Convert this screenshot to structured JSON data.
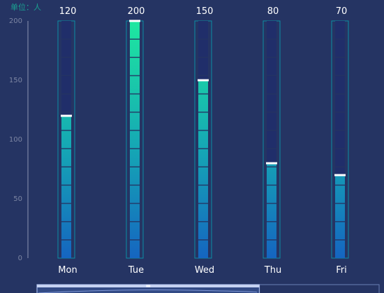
{
  "unit_label": "单位：人",
  "colors": {
    "background": "#253463",
    "bar_frame": "#0b8ea6",
    "bar_track": "#202e6a",
    "bar_bottom": "#1565c0",
    "bar_top": "#1ee8a0",
    "bar_cap": "#ffffff",
    "axis": "#8a93b0",
    "tick_text": "#7d86a3",
    "label_text": "#ffffff"
  },
  "chart_data": {
    "type": "bar",
    "categories": [
      "Mon",
      "Tue",
      "Wed",
      "Thu",
      "Fri"
    ],
    "values": [
      120,
      200,
      150,
      80,
      70
    ],
    "value_labels": [
      "120",
      "200",
      "150",
      "80",
      "70"
    ],
    "yticks": [
      "0",
      "50",
      "100",
      "150",
      "200"
    ],
    "ylim": [
      0,
      200
    ],
    "grid": false,
    "data_labels": "above-bars",
    "bar_style": "segmented-gradient",
    "datazoom": {
      "start": 0,
      "end": 0.65
    }
  }
}
